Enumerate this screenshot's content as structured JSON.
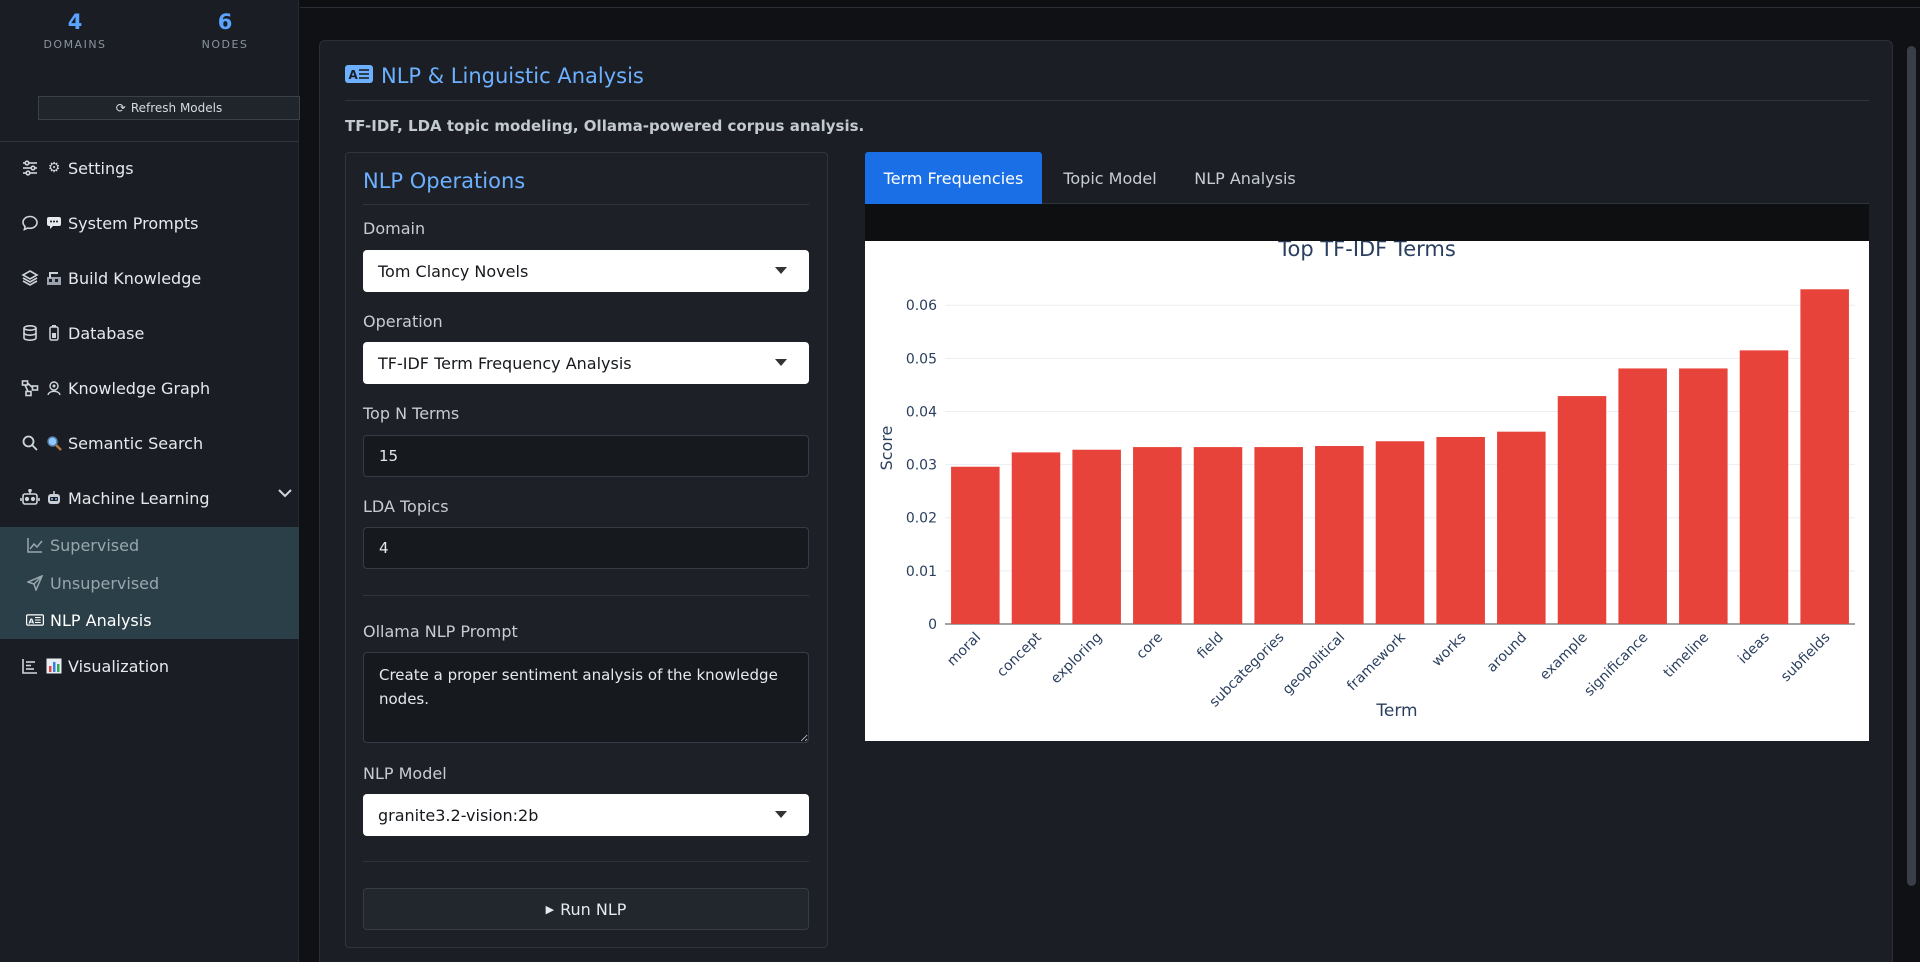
{
  "sidebar": {
    "stats": [
      {
        "value": "4",
        "label": "DOMAINS"
      },
      {
        "value": "6",
        "label": "NODES"
      }
    ],
    "refresh_label": "Refresh Models",
    "nav": [
      {
        "label": "Settings",
        "icon": "sliders-icon",
        "icon2": "gear-icon"
      },
      {
        "label": "System Prompts",
        "icon": "chat-icon",
        "icon2": "speech-balloon-icon"
      },
      {
        "label": "Build Knowledge",
        "icon": "layers-icon",
        "icon2": "construction-icon"
      },
      {
        "label": "Database",
        "icon": "database-icon",
        "icon2": "battery-icon"
      },
      {
        "label": "Knowledge Graph",
        "icon": "diagram-icon",
        "icon2": "network-icon"
      },
      {
        "label": "Semantic Search",
        "icon": "search-icon",
        "icon2": "magnifier-icon"
      },
      {
        "label": "Machine Learning",
        "icon": "robot-icon",
        "icon2": "robot-face-icon"
      },
      {
        "label": "Visualization",
        "icon": "chart-icon",
        "icon2": "bar-chart-icon"
      }
    ],
    "ml_submenu": [
      {
        "label": "Supervised",
        "icon": "line-chart-icon"
      },
      {
        "label": "Unsupervised",
        "icon": "send-icon"
      },
      {
        "label": "NLP Analysis",
        "icon": "alphabet-badge-icon"
      }
    ]
  },
  "page": {
    "title": "NLP & Linguistic Analysis",
    "subtitle": "TF-IDF, LDA topic modeling, Ollama-powered corpus analysis."
  },
  "ops": {
    "title": "NLP Operations",
    "domain_label": "Domain",
    "domain_value": "Tom Clancy Novels",
    "operation_label": "Operation",
    "operation_value": "TF-IDF Term Frequency Analysis",
    "topn_label": "Top N Terms",
    "topn_value": "15",
    "lda_label": "LDA Topics",
    "lda_value": "4",
    "prompt_label": "Ollama NLP Prompt",
    "prompt_value": "Create a proper sentiment analysis of the knowledge nodes.",
    "model_label": "NLP Model",
    "model_value": "granite3.2-vision:2b",
    "run_label": "Run NLP"
  },
  "tabs": [
    {
      "label": "Term Frequencies",
      "active": true
    },
    {
      "label": "Topic Model",
      "active": false
    },
    {
      "label": "NLP Analysis",
      "active": false
    }
  ],
  "colors": {
    "accent": "#1a6fe6",
    "title_blue": "#6cb0ff",
    "bar": "#e8433a"
  },
  "chart_data": {
    "type": "bar",
    "title": "Top TF-IDF Terms",
    "xlabel": "Term",
    "ylabel": "Score",
    "categories": [
      "moral",
      "concept",
      "exploring",
      "core",
      "field",
      "subcategories",
      "geopolitical",
      "framework",
      "works",
      "around",
      "example",
      "significance",
      "timeline",
      "ideas",
      "subfields"
    ],
    "values": [
      0.0296,
      0.0323,
      0.0328,
      0.0333,
      0.0333,
      0.0333,
      0.0335,
      0.0344,
      0.0352,
      0.0362,
      0.0429,
      0.0481,
      0.0481,
      0.0515,
      0.063
    ],
    "yticks": [
      "0",
      "0.01",
      "0.02",
      "0.03",
      "0.04",
      "0.05",
      "0.06"
    ],
    "ylim": [
      0,
      0.0655
    ],
    "grid": true
  }
}
